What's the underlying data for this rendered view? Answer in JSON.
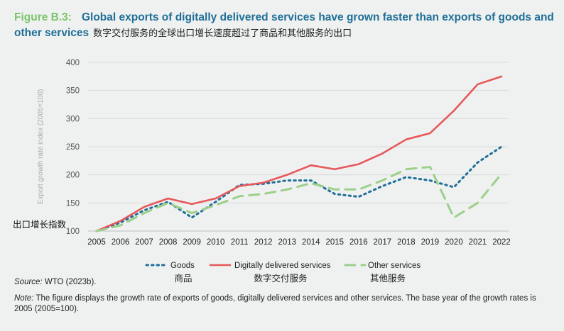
{
  "header": {
    "figure_label": "Figure B.3:",
    "title": "Global exports of digitally delivered services have grown faster than exports of goods and other services",
    "subtitle_cn": "数字交付服务的全球出口增长速度超过了商品和其他服务的出口"
  },
  "annotation_cn": "出口增长指数",
  "chart_data": {
    "type": "line",
    "title": "Global exports of digitally delivered services have grown faster than exports of goods and other services",
    "xlabel": "",
    "ylabel": "Export growth rate index (2005=100)",
    "x": [
      "2005",
      "2006",
      "2007",
      "2008",
      "2009",
      "2010",
      "2011",
      "2012",
      "2013",
      "2014",
      "2015",
      "2016",
      "2017",
      "2018",
      "2019",
      "2020",
      "2021",
      "2022"
    ],
    "ylim": [
      100,
      400
    ],
    "yticks": [
      100,
      150,
      200,
      250,
      300,
      350,
      400
    ],
    "grid": true,
    "series": [
      {
        "name": "Goods",
        "name_cn": "商品",
        "color": "#1f6f96",
        "style": "dotted",
        "values": [
          100,
          115,
          137,
          152,
          124,
          152,
          182,
          184,
          190,
          190,
          166,
          161,
          180,
          196,
          190,
          178,
          222,
          250
        ]
      },
      {
        "name": "Digitally delivered services",
        "name_cn": "数字交付服务",
        "color": "#e8575a",
        "style": "solid",
        "values": [
          100,
          118,
          143,
          158,
          148,
          158,
          180,
          186,
          200,
          217,
          210,
          219,
          238,
          263,
          274,
          314,
          361,
          375
        ]
      },
      {
        "name": "Other services",
        "name_cn": "其他服务",
        "color": "#9ccf8a",
        "style": "dashed",
        "values": [
          100,
          110,
          132,
          150,
          132,
          146,
          162,
          166,
          174,
          185,
          174,
          174,
          190,
          210,
          214,
          124,
          150,
          202
        ]
      }
    ]
  },
  "footer": {
    "source_label": "Source:",
    "source_text": " WTO (2023b).",
    "note_label": "Note:",
    "note_text": " The figure displays the growth rate of exports of goods, digitally delivered services and other services. The base year of the growth rates is 2005 (2005=100)."
  }
}
